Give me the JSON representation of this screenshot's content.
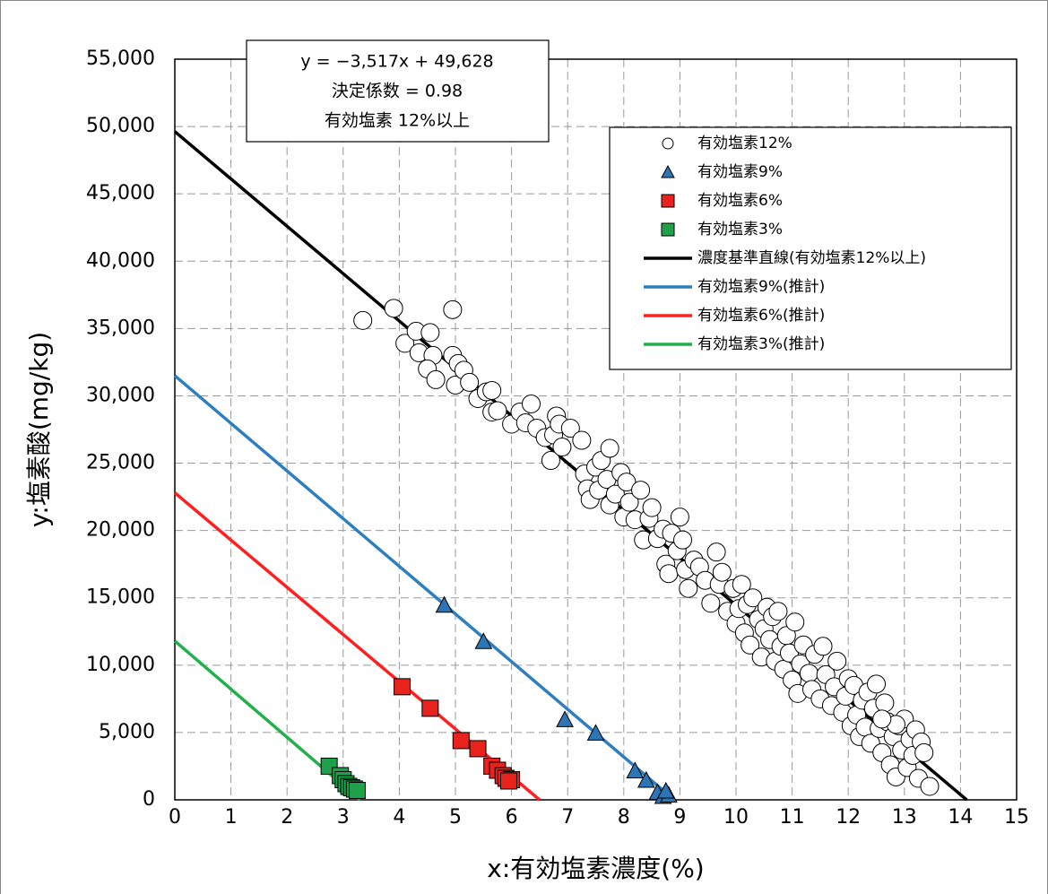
{
  "chart_data": {
    "type": "scatter",
    "x_label": "x:有効塩素濃度(%)",
    "y_label": "y:塩素酸(mg/kg)",
    "annotations": [
      "y = −3,517x + 49,628",
      "決定係数 = 0.98",
      "有効塩素 12%以上"
    ],
    "xlim": [
      0,
      15
    ],
    "xticks": [
      0,
      1,
      2,
      3,
      4,
      5,
      6,
      7,
      8,
      9,
      10,
      11,
      12,
      13,
      14,
      15
    ],
    "ylim": [
      0,
      55000
    ],
    "yticks": [
      0,
      {
        "value": 5000,
        "label": "5,000"
      },
      {
        "value": 10000,
        "label": "10,000"
      },
      {
        "value": 15000,
        "label": "15,000"
      },
      {
        "value": 20000,
        "label": "20,000"
      },
      {
        "value": 25000,
        "label": "25,000"
      },
      {
        "value": 30000,
        "label": "30,000"
      },
      {
        "value": 35000,
        "label": "35,000"
      },
      {
        "value": 40000,
        "label": "40,000"
      },
      {
        "value": 45000,
        "label": "45,000"
      },
      {
        "value": 50000,
        "label": "50,000"
      },
      {
        "value": 55000,
        "label": "55,000"
      }
    ],
    "grid": true,
    "legend": "upper right",
    "series": [
      {
        "name": "有効塩素12%",
        "marker": "circle",
        "color": "#ffffff",
        "x": [
          3.35,
          3.9,
          4.95,
          4.1,
          4.3,
          4.55,
          4.35,
          4.6,
          4.5,
          4.65,
          4.95,
          5.0,
          5.05,
          5.15,
          5.25,
          5.4,
          5.55,
          5.65,
          5.65,
          5.75,
          6.0,
          6.15,
          6.25,
          6.35,
          6.45,
          6.6,
          6.7,
          6.75,
          6.8,
          6.85,
          6.9,
          7.05,
          7.25,
          7.3,
          7.35,
          7.4,
          7.5,
          7.55,
          7.6,
          7.7,
          7.75,
          7.85,
          7.75,
          7.95,
          8.0,
          8.05,
          8.1,
          8.2,
          8.3,
          8.35,
          8.45,
          8.5,
          8.6,
          8.7,
          8.75,
          8.8,
          8.85,
          8.95,
          9.0,
          9.05,
          9.1,
          9.15,
          9.25,
          9.35,
          9.45,
          9.55,
          9.65,
          9.7,
          9.75,
          9.85,
          9.95,
          10.0,
          10.05,
          10.1,
          10.15,
          10.2,
          10.25,
          10.3,
          10.4,
          10.45,
          10.5,
          10.55,
          10.6,
          10.65,
          10.7,
          10.75,
          10.8,
          10.85,
          10.9,
          10.95,
          11.0,
          11.05,
          11.1,
          11.15,
          11.2,
          11.3,
          11.35,
          11.4,
          11.5,
          11.55,
          11.6,
          11.7,
          11.75,
          11.8,
          11.9,
          11.95,
          12.0,
          12.05,
          12.1,
          12.15,
          12.2,
          12.25,
          12.3,
          12.35,
          12.4,
          12.45,
          12.5,
          12.55,
          12.6,
          12.65,
          12.7,
          12.75,
          12.8,
          12.85,
          12.9,
          12.95,
          13.0,
          13.05,
          13.1,
          13.15,
          13.2,
          13.25,
          13.3,
          13.35,
          13.45,
          12.85,
          12.6
        ],
        "values": [
          35600,
          36500,
          36400,
          33900,
          34800,
          34700,
          33200,
          33000,
          32000,
          31200,
          33000,
          30800,
          32400,
          31900,
          31000,
          29800,
          30300,
          30400,
          28800,
          28900,
          27900,
          28800,
          28000,
          29400,
          27600,
          26900,
          25200,
          27100,
          28500,
          27900,
          26200,
          27600,
          26700,
          24200,
          23100,
          22300,
          24700,
          23000,
          25200,
          23800,
          21900,
          22700,
          26100,
          24300,
          21000,
          23600,
          22100,
          20800,
          23000,
          19300,
          20900,
          21700,
          19400,
          20100,
          17500,
          16800,
          19800,
          18500,
          21000,
          19300,
          17100,
          15700,
          17800,
          17300,
          16300,
          14600,
          18400,
          16000,
          16900,
          14000,
          15700,
          13100,
          14200,
          16000,
          12400,
          14500,
          11500,
          15000,
          13400,
          10600,
          12700,
          14300,
          11900,
          13600,
          10300,
          14000,
          11400,
          9700,
          12200,
          10900,
          8900,
          13200,
          7900,
          10100,
          11500,
          9400,
          8200,
          10800,
          7500,
          11400,
          9300,
          7000,
          8400,
          10300,
          6500,
          7700,
          9000,
          5500,
          8500,
          6300,
          4700,
          7400,
          5400,
          8000,
          4200,
          6800,
          8600,
          5300,
          3500,
          7200,
          5800,
          2600,
          4700,
          1700,
          5500,
          3700,
          6000,
          2400,
          4500,
          3300,
          5200,
          1600,
          4300,
          3500,
          1000,
          5600,
          6000
        ]
      },
      {
        "name": "有効塩素9%",
        "marker": "triangle",
        "color": "#2e75b6",
        "x": [
          4.8,
          5.5,
          6.95,
          7.5,
          8.2,
          8.4,
          8.6,
          8.7,
          8.8,
          8.75
        ],
        "values": [
          14400,
          11700,
          5900,
          4900,
          2100,
          1400,
          500,
          200,
          300,
          600
        ]
      },
      {
        "name": "有効塩素6%",
        "marker": "square",
        "color": "#e8221d",
        "x": [
          4.05,
          4.55,
          5.1,
          5.4,
          5.65,
          5.75,
          5.85,
          5.9,
          6.0,
          5.95
        ],
        "values": [
          8400,
          6800,
          4400,
          3800,
          2500,
          2200,
          1800,
          1600,
          1500,
          1400
        ]
      },
      {
        "name": "有効塩素3%",
        "marker": "square",
        "color": "#1fa04a",
        "x": [
          2.75,
          2.95,
          3.0,
          3.05,
          3.1,
          3.15,
          3.2,
          3.25
        ],
        "values": [
          2500,
          1800,
          1500,
          1200,
          1000,
          900,
          800,
          700
        ]
      },
      {
        "name": "濃度基準直線(有効塩素12%以上)",
        "marker": "line",
        "color": "#000000",
        "x": [
          0,
          14.11
        ],
        "values": [
          49628,
          0
        ]
      },
      {
        "name": "有効塩素9%(推計)",
        "marker": "line",
        "color": "#2e7fc0",
        "x": [
          0,
          8.9
        ],
        "values": [
          31500,
          0
        ]
      },
      {
        "name": "有効塩素6%(推計)",
        "marker": "line",
        "color": "#ff1f1f",
        "x": [
          0,
          6.5
        ],
        "values": [
          22800,
          0
        ]
      },
      {
        "name": "有効塩素3%(推計)",
        "marker": "line",
        "color": "#22b04c",
        "x": [
          0,
          3.3
        ],
        "values": [
          11800,
          0
        ]
      }
    ]
  }
}
